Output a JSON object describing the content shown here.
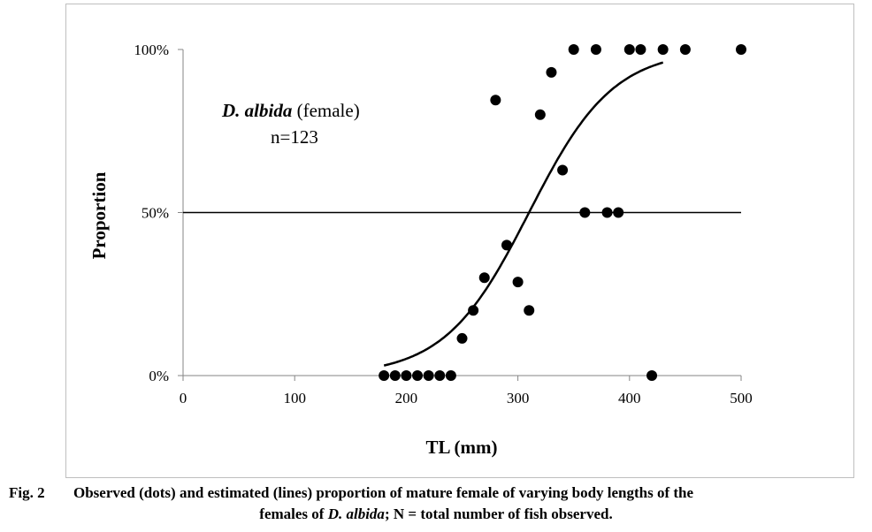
{
  "chart_data": {
    "type": "scatter",
    "xlabel": "TL (mm)",
    "ylabel": "Proportion",
    "xlim": [
      0,
      500
    ],
    "ylim": [
      0,
      100
    ],
    "x_ticks": [
      "0",
      "100",
      "200",
      "300",
      "400",
      "500"
    ],
    "y_ticks": [
      "0%",
      "50%",
      "100%"
    ],
    "grid": false,
    "annotation": {
      "species": "D. albida",
      "sex": " (female)",
      "n": "n=123"
    },
    "reference_line_y": 50,
    "observed": {
      "x": [
        180,
        190,
        200,
        210,
        220,
        230,
        240,
        250,
        260,
        270,
        280,
        290,
        300,
        310,
        320,
        330,
        340,
        350,
        360,
        370,
        380,
        390,
        400,
        410,
        420,
        430,
        450,
        500
      ],
      "y": [
        0,
        0,
        0,
        0,
        0,
        0,
        0,
        11.4,
        20,
        30,
        84.5,
        40,
        28.7,
        20,
        80,
        93,
        63,
        100,
        50,
        100,
        50,
        50,
        100,
        100,
        0,
        100,
        100,
        100
      ]
    },
    "estimated": {
      "model": "logistic",
      "L50": 310,
      "k": 0.0265,
      "x_range": [
        180,
        430
      ]
    },
    "colors": {
      "points": "#000000",
      "line": "#000000"
    }
  },
  "caption": {
    "fig": "Fig. 2",
    "line1": "Observed (dots) and estimated (lines) proportion of mature female of varying body lengths of the",
    "line2_pre": "females of ",
    "line2_species": "D. albida",
    "line2_post": "; N = total number of fish observed."
  }
}
